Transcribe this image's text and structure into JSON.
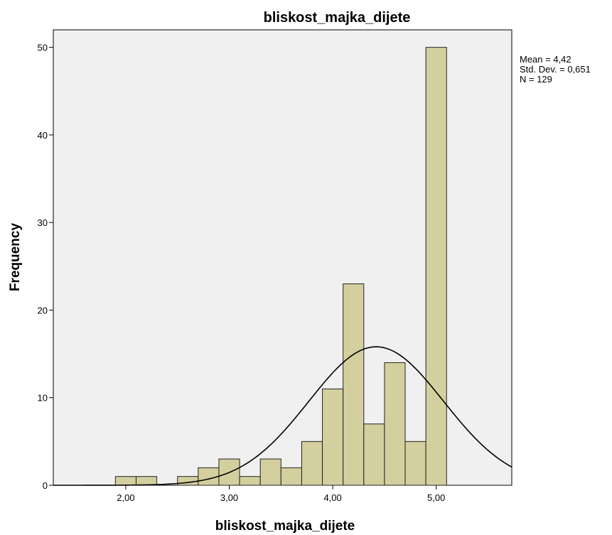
{
  "chart_data": {
    "type": "bar",
    "title": "bliskost_majka_dijete",
    "xlabel": "bliskost_majka_dijete",
    "ylabel": "Frequency",
    "xlim": [
      1.3,
      5.73
    ],
    "ylim": [
      0,
      52
    ],
    "x_ticks": [
      {
        "value": 2,
        "label": "2,00"
      },
      {
        "value": 3,
        "label": "3,00"
      },
      {
        "value": 4,
        "label": "4,00"
      },
      {
        "value": 5,
        "label": "5,00"
      }
    ],
    "y_ticks": [
      {
        "value": 0,
        "label": "0"
      },
      {
        "value": 10,
        "label": "10"
      },
      {
        "value": 20,
        "label": "20"
      },
      {
        "value": 30,
        "label": "30"
      },
      {
        "value": 40,
        "label": "40"
      },
      {
        "value": 50,
        "label": "50"
      }
    ],
    "bin_width": 0.2,
    "bins": [
      {
        "start": 1.9,
        "count": 1
      },
      {
        "start": 2.1,
        "count": 1
      },
      {
        "start": 2.3,
        "count": 0
      },
      {
        "start": 2.5,
        "count": 1
      },
      {
        "start": 2.7,
        "count": 2
      },
      {
        "start": 2.9,
        "count": 3
      },
      {
        "start": 3.1,
        "count": 1
      },
      {
        "start": 3.3,
        "count": 3
      },
      {
        "start": 3.5,
        "count": 2
      },
      {
        "start": 3.7,
        "count": 5
      },
      {
        "start": 3.9,
        "count": 11
      },
      {
        "start": 4.1,
        "count": 23
      },
      {
        "start": 4.3,
        "count": 7
      },
      {
        "start": 4.5,
        "count": 14
      },
      {
        "start": 4.7,
        "count": 5
      },
      {
        "start": 4.9,
        "count": 50
      }
    ],
    "normal_curve": {
      "mean": 4.42,
      "sd": 0.651,
      "n": 129
    },
    "stats_lines": [
      "Mean = 4,42",
      "Std. Dev. = 0,651",
      "N = 129"
    ],
    "colors": {
      "bar_fill": "#d4cf9e",
      "bar_stroke": "#222222",
      "plot_background": "#f0f0f0",
      "curve": "#000000"
    },
    "grid": false,
    "legend": "none"
  }
}
